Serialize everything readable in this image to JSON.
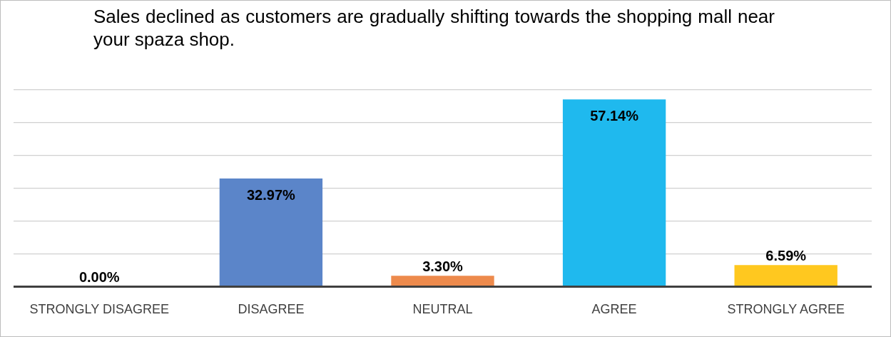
{
  "chart_data": {
    "type": "bar",
    "title": "Sales declined as customers are gradually shifting towards the shopping mall near your spaza shop.",
    "categories": [
      "STRONGLY DISAGREE",
      "DISAGREE",
      "NEUTRAL",
      "AGREE",
      "STRONGLY AGREE"
    ],
    "values": [
      0.0,
      32.97,
      3.3,
      57.14,
      6.59
    ],
    "colors": [
      "#a5a5a5",
      "#5b85c9",
      "#ed8a4c",
      "#1fb9ee",
      "#ffc81f"
    ],
    "value_labels": [
      "0.00%",
      "32.97%",
      "3.30%",
      "57.14%",
      "6.59%"
    ],
    "grid": "y",
    "tick_labels": "x"
  }
}
